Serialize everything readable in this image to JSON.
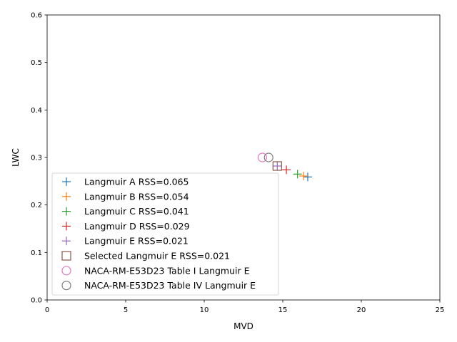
{
  "chart_data": {
    "type": "scatter",
    "xlabel": "MVD",
    "ylabel": "LWC",
    "xlim": [
      0,
      25
    ],
    "ylim": [
      0,
      0.6
    ],
    "xticks": [
      "0",
      "5",
      "10",
      "15",
      "20",
      "25"
    ],
    "yticks": [
      "0.0",
      "0.1",
      "0.2",
      "0.3",
      "0.4",
      "0.5",
      "0.6"
    ],
    "grid": false,
    "legend_position": "lower-left",
    "series": [
      {
        "name": "Langmuir A RSS=0.065",
        "marker": "plus",
        "color": "#1f77b4",
        "x": 16.59,
        "y": 0.259
      },
      {
        "name": "Langmuir B RSS=0.054",
        "marker": "plus",
        "color": "#ff7f0e",
        "x": 16.32,
        "y": 0.261
      },
      {
        "name": "Langmuir C RSS=0.041",
        "marker": "plus",
        "color": "#2ca02c",
        "x": 15.94,
        "y": 0.265
      },
      {
        "name": "Langmuir D RSS=0.029",
        "marker": "plus",
        "color": "#d62728",
        "x": 15.23,
        "y": 0.274
      },
      {
        "name": "Langmuir E RSS=0.021",
        "marker": "plus",
        "color": "#9467bd",
        "x": 14.65,
        "y": 0.282
      },
      {
        "name": "Selected Langmuir E RSS=0.021",
        "marker": "square",
        "color": "#8c564b",
        "x": 14.65,
        "y": 0.282
      },
      {
        "name": "NACA-RM-E53D23 Table I Langmuir E",
        "marker": "circle",
        "color": "#e377c2",
        "x": 13.7,
        "y": 0.3
      },
      {
        "name": "NACA-RM-E53D23 Table IV Langmuir E",
        "marker": "circle",
        "color": "#7f7f7f",
        "x": 14.1,
        "y": 0.3
      }
    ]
  }
}
